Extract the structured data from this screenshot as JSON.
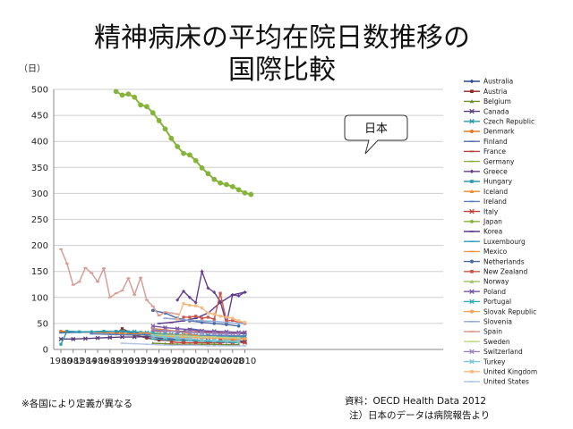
{
  "title_line1": "精神病床の平均在院日数推移の",
  "title_line2": "国際比較",
  "ylabel": "（日）",
  "note_left": "※各国により定義が異なる",
  "source_line1": "資料：OECD Health Data 2012",
  "source_line2": "注）日本のデータは病院報告より",
  "callout": "日本",
  "chart_data": {
    "type": "line",
    "ylim": [
      0,
      500
    ],
    "yticks": [
      0,
      50,
      100,
      150,
      200,
      250,
      300,
      350,
      400,
      450,
      500
    ],
    "xlim": [
      1980,
      2011
    ],
    "xticks": [
      1980,
      1982,
      1984,
      1986,
      1988,
      1990,
      1992,
      1994,
      1996,
      1998,
      2000,
      2002,
      2004,
      2006,
      2008,
      2010
    ],
    "grid": "horizontal",
    "legend_position": "right",
    "series": [
      {
        "name": "Australia",
        "color": "#2e4a8c",
        "marker": "diamond",
        "x": [
          1997,
          1999,
          2001,
          2003,
          2005,
          2007,
          2009,
          2010
        ],
        "values": [
          28,
          27,
          25,
          24,
          24,
          23,
          22,
          22
        ]
      },
      {
        "name": "Austria",
        "color": "#8b2a24",
        "marker": "square",
        "x": [
          1989,
          1990,
          1992,
          1994,
          1996,
          1998,
          2000,
          2002,
          2004,
          2006,
          2008,
          2010
        ],
        "values": [
          30,
          40,
          28,
          22,
          18,
          17,
          18,
          17,
          16,
          17,
          16,
          16
        ]
      },
      {
        "name": "Belgium",
        "color": "#6e8f2c",
        "marker": "triangle",
        "x": [
          1995,
          1997,
          1999,
          2001,
          2003,
          2005,
          2007,
          2009
        ],
        "values": [
          12,
          11,
          10,
          10,
          10,
          10,
          9,
          9
        ]
      },
      {
        "name": "Canada",
        "color": "#5a3e7a",
        "marker": "x",
        "x": [
          1980,
          1982,
          1984,
          1986,
          1988,
          1990,
          1992,
          1994,
          1996,
          1998,
          2000,
          2002,
          2004,
          2006,
          2008,
          2010
        ],
        "values": [
          20,
          20,
          21,
          22,
          23,
          24,
          24,
          25,
          22,
          20,
          18,
          17,
          17,
          16,
          16,
          15
        ]
      },
      {
        "name": "Czech Republic",
        "color": "#2b9aa8",
        "marker": "x",
        "x": [
          1990,
          1992,
          1994,
          1996,
          1998,
          2000,
          2002,
          2004,
          2006,
          2008,
          2010
        ],
        "values": [
          35,
          34,
          32,
          30,
          29,
          28,
          27,
          27,
          26,
          25,
          25
        ]
      },
      {
        "name": "Denmark",
        "color": "#e07b25",
        "marker": "circle",
        "x": [
          1980,
          1985,
          1990,
          1995,
          2000,
          2005,
          2010
        ],
        "values": [
          35,
          33,
          31,
          28,
          25,
          23,
          20
        ]
      },
      {
        "name": "Finland",
        "color": "#4f6fa8",
        "marker": "dash",
        "x": [
          1980,
          1983,
          1986,
          1989,
          1992,
          1995,
          1998,
          2001,
          2004,
          2007,
          2010
        ],
        "values": [
          32,
          33,
          34,
          35,
          33,
          28,
          27,
          40,
          35,
          33,
          30
        ]
      },
      {
        "name": "France",
        "color": "#b0443c",
        "marker": "dash",
        "x": [
          1995,
          1997,
          1999,
          2001,
          2003,
          2005,
          2007,
          2009,
          2010
        ],
        "values": [
          36,
          35,
          35,
          34,
          34,
          33,
          33,
          32,
          32
        ]
      },
      {
        "name": "Germany",
        "color": "#8fae4a",
        "marker": "dash",
        "x": [
          1991,
          1993,
          1995,
          1997,
          1999,
          2001,
          2003,
          2005,
          2007,
          2009,
          2010
        ],
        "values": [
          28,
          28,
          27,
          26,
          25,
          25,
          24,
          23,
          23,
          23,
          22
        ]
      },
      {
        "name": "Greece",
        "color": "#6a3d8f",
        "marker": "diamond",
        "x": [
          1999,
          2000,
          2001,
          2002,
          2003,
          2004,
          2005,
          2006,
          2007,
          2008,
          2009,
          2010
        ],
        "values": [
          95,
          112,
          100,
          90,
          150,
          118,
          110,
          92,
          50,
          105,
          103,
          110
        ]
      },
      {
        "name": "Hungary",
        "color": "#2a9ab0",
        "marker": "square",
        "x": [
          1980,
          1981,
          1983,
          1985,
          1987,
          1989,
          1991,
          1993,
          1995,
          1997,
          1999,
          2001,
          2003,
          2005,
          2007,
          2009,
          2010
        ],
        "values": [
          10,
          35,
          34,
          34,
          35,
          35,
          34,
          33,
          32,
          30,
          28,
          26,
          25,
          24,
          23,
          22,
          22
        ]
      },
      {
        "name": "Iceland",
        "color": "#f08a2a",
        "marker": "triangle",
        "x": [
          1995,
          1997,
          1999,
          2001,
          2003,
          2005,
          2007,
          2009
        ],
        "values": [
          40,
          38,
          35,
          30,
          25,
          22,
          20,
          18
        ]
      },
      {
        "name": "Ireland",
        "color": "#5b7fbf",
        "marker": "dash",
        "x": [
          1985,
          1988,
          1991,
          1994,
          1997,
          2000,
          2003,
          2006,
          2009,
          2010
        ],
        "values": [
          30,
          29,
          28,
          28,
          28,
          27,
          27,
          27,
          26,
          26
        ]
      },
      {
        "name": "Italy",
        "color": "#c0413a",
        "marker": "x",
        "x": [
          1998,
          2000,
          2002,
          2004,
          2006,
          2008,
          2010
        ],
        "values": [
          14,
          13,
          13,
          13,
          13,
          13,
          13
        ]
      },
      {
        "name": "Japan",
        "color": "#86b33a",
        "marker": "circle",
        "x": [
          1989,
          1990,
          1991,
          1992,
          1993,
          1994,
          1995,
          1996,
          1997,
          1998,
          1999,
          2000,
          2001,
          2002,
          2003,
          2004,
          2005,
          2006,
          2007,
          2008,
          2009,
          2010,
          2011
        ],
        "values": [
          496,
          489,
          491,
          485,
          470,
          467,
          455,
          440,
          424,
          406,
          390,
          377,
          374,
          363,
          349,
          338,
          327,
          320,
          317,
          313,
          307,
          301,
          298
        ]
      },
      {
        "name": "Korea",
        "color": "#5b3a8a",
        "marker": "dash",
        "x": [
          1996,
          1998,
          2000,
          2002,
          2004,
          2006,
          2008,
          2010
        ],
        "values": [
          50,
          52,
          55,
          60,
          70,
          90,
          105,
          110
        ]
      },
      {
        "name": "Luxembourg",
        "color": "#2c9fb5",
        "marker": "dash",
        "x": [
          1995,
          1997,
          1999,
          2001,
          2003,
          2005,
          2007,
          2009
        ],
        "values": [
          20,
          19,
          18,
          17,
          16,
          15,
          14,
          13
        ]
      },
      {
        "name": "Mexico",
        "color": "#f29a45",
        "marker": "dash",
        "x": [
          1993,
          1996,
          1999,
          2002,
          2005,
          2008,
          2010
        ],
        "values": [
          32,
          30,
          28,
          26,
          24,
          22,
          20
        ]
      },
      {
        "name": "Netherlands",
        "color": "#4a6aa5",
        "marker": "circle",
        "x": [
          1995,
          1997,
          1999,
          2001,
          2003,
          2005,
          2007,
          2009
        ],
        "values": [
          75,
          70,
          60,
          55,
          52,
          50,
          48,
          45
        ]
      },
      {
        "name": "New Zealand",
        "color": "#c8564a",
        "marker": "square",
        "x": [
          2000,
          2001,
          2002,
          2003,
          2004,
          2005,
          2006,
          2007,
          2008,
          2009,
          2010
        ],
        "values": [
          62,
          62,
          64,
          60,
          62,
          58,
          108,
          55,
          56,
          52,
          50
        ]
      },
      {
        "name": "Norway",
        "color": "#a3c26a",
        "marker": "triangle",
        "x": [
          1995,
          1997,
          1999,
          2001,
          2003,
          2005,
          2007,
          2009
        ],
        "values": [
          30,
          25,
          22,
          20,
          18,
          17,
          16,
          15
        ]
      },
      {
        "name": "Poland",
        "color": "#7a55a8",
        "marker": "x",
        "x": [
          1995,
          1997,
          1999,
          2001,
          2003,
          2005,
          2007,
          2009,
          2010
        ],
        "values": [
          45,
          42,
          40,
          38,
          36,
          35,
          34,
          33,
          33
        ]
      },
      {
        "name": "Portugal",
        "color": "#36a9c2",
        "marker": "x",
        "x": [
          1995,
          1997,
          1999,
          2001,
          2003,
          2005,
          2007,
          2009
        ],
        "values": [
          30,
          28,
          26,
          25,
          24,
          23,
          22,
          22
        ]
      },
      {
        "name": "Slovak Republic",
        "color": "#f4a35e",
        "marker": "circle",
        "x": [
          1997,
          1999,
          2001,
          2003,
          2005,
          2007,
          2009,
          2010
        ],
        "values": [
          25,
          24,
          23,
          22,
          22,
          21,
          21,
          21
        ]
      },
      {
        "name": "Slovenia",
        "color": "#8fa7d4",
        "marker": "dash",
        "x": [
          1997,
          1999,
          2001,
          2003,
          2005,
          2007,
          2009,
          2010
        ],
        "values": [
          60,
          58,
          56,
          55,
          54,
          52,
          50,
          50
        ]
      },
      {
        "name": "Spain",
        "color": "#d69a92",
        "marker": "dash",
        "x": [
          1980,
          1981,
          1982,
          1983,
          1984,
          1985,
          1986,
          1987,
          1988,
          1989,
          1990,
          1991,
          1992,
          1993,
          1994,
          1995,
          1996,
          1997,
          1998,
          1999
        ],
        "values": [
          193,
          165,
          124,
          130,
          157,
          147,
          130,
          156,
          100,
          108,
          113,
          137,
          105,
          138,
          95,
          83,
          65,
          72,
          70,
          68
        ]
      },
      {
        "name": "Sweden",
        "color": "#bcd58e",
        "marker": "dash",
        "x": [
          1995,
          1997,
          1999,
          2001,
          2003,
          2005,
          2007,
          2009
        ],
        "values": [
          28,
          27,
          26,
          25,
          24,
          24,
          23,
          22
        ]
      },
      {
        "name": "Switzerland",
        "color": "#9a84c0",
        "marker": "x",
        "x": [
          1995,
          1997,
          1999,
          2001,
          2003,
          2005,
          2007,
          2009
        ],
        "values": [
          38,
          36,
          34,
          33,
          32,
          31,
          30,
          30
        ]
      },
      {
        "name": "Turkey",
        "color": "#7ec3d6",
        "marker": "x",
        "x": [
          1995,
          1997,
          1999,
          2001,
          2003,
          2005,
          2007,
          2009
        ],
        "values": [
          25,
          23,
          22,
          20,
          18,
          17,
          16,
          16
        ]
      },
      {
        "name": "United Kingdom",
        "color": "#f7b97f",
        "marker": "square",
        "x": [
          1999,
          2000,
          2001,
          2002,
          2003,
          2004,
          2005,
          2006,
          2007,
          2008,
          2009,
          2010
        ],
        "values": [
          58,
          88,
          85,
          84,
          80,
          70,
          68,
          64,
          62,
          60,
          55,
          52
        ]
      },
      {
        "name": "United States",
        "color": "#b5c4e2",
        "marker": "dash",
        "x": [
          1990,
          1992,
          1994,
          1996,
          1998,
          2000,
          2002,
          2004,
          2006,
          2008,
          2010
        ],
        "values": [
          12,
          11,
          10,
          9,
          8,
          8,
          8,
          7,
          7,
          7,
          7
        ]
      }
    ]
  }
}
